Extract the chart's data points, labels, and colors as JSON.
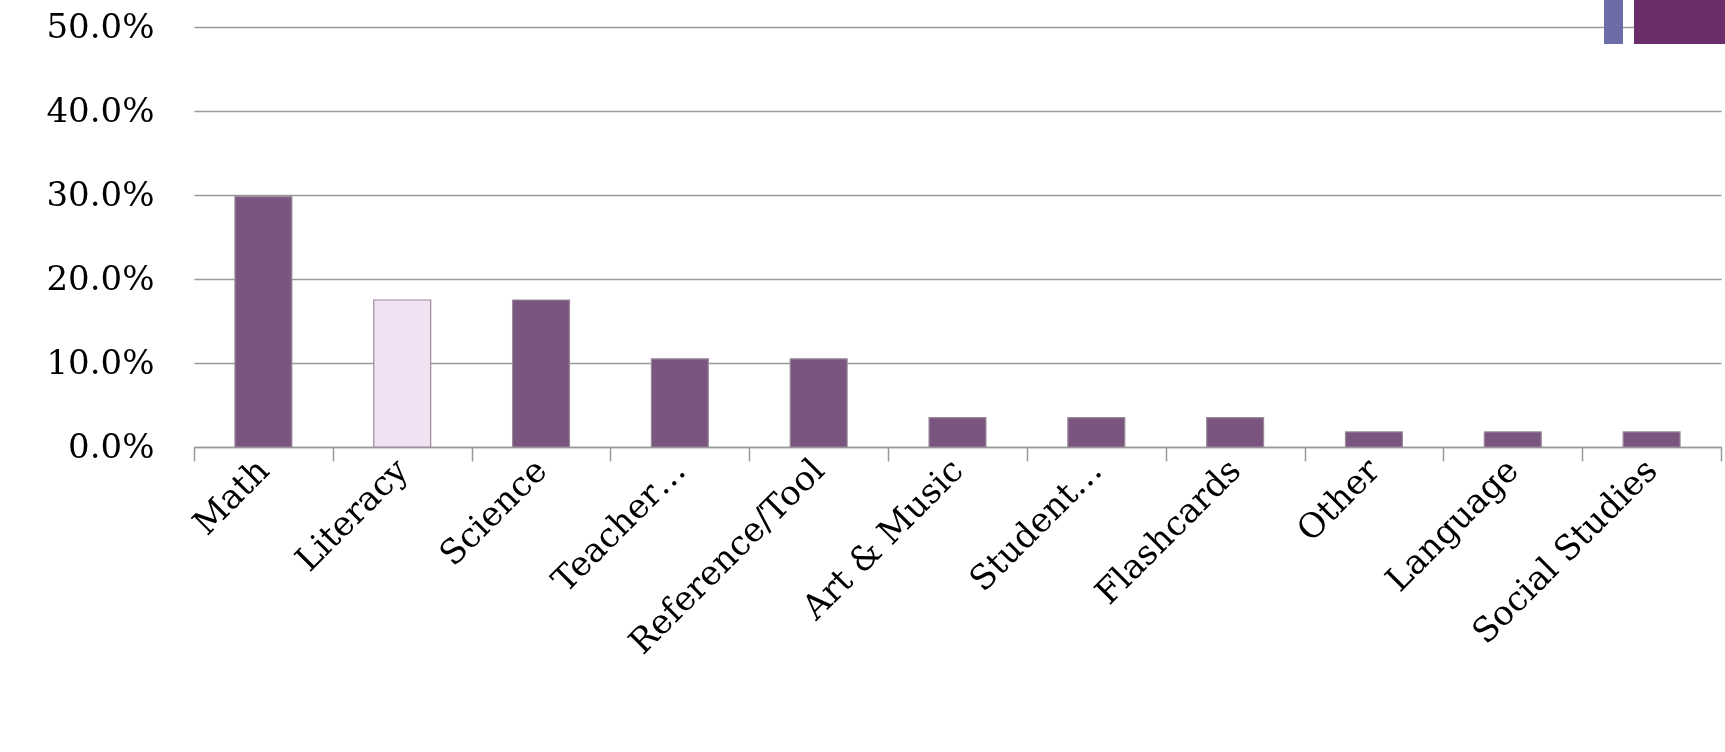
{
  "chart_data": {
    "type": "bar",
    "categories": [
      "Math",
      "Literacy",
      "Science",
      "Teacher…",
      "Reference/Tool",
      "Art & Music",
      "Student…",
      "Flashcards",
      "Other",
      "Language",
      "Social Studies"
    ],
    "values": [
      29.8,
      17.5,
      17.5,
      10.5,
      10.5,
      3.5,
      3.5,
      3.5,
      1.8,
      1.8,
      1.8
    ],
    "colors": [
      "#7a5580",
      "#f1e1f2",
      "#7a5580",
      "#7a5580",
      "#7a5580",
      "#7a5580",
      "#7a5580",
      "#7a5580",
      "#7a5580",
      "#7a5580",
      "#7a5580"
    ],
    "ylim": [
      0,
      50
    ],
    "yticks": [
      {
        "value": 0,
        "label": "0.0%"
      },
      {
        "value": 10,
        "label": "10.0%"
      },
      {
        "value": 20,
        "label": "20.0%"
      },
      {
        "value": 30,
        "label": "30.0%"
      },
      {
        "value": 40,
        "label": "40.0%"
      },
      {
        "value": 50,
        "label": "50.0%"
      }
    ],
    "grid": "y",
    "legend": false
  }
}
